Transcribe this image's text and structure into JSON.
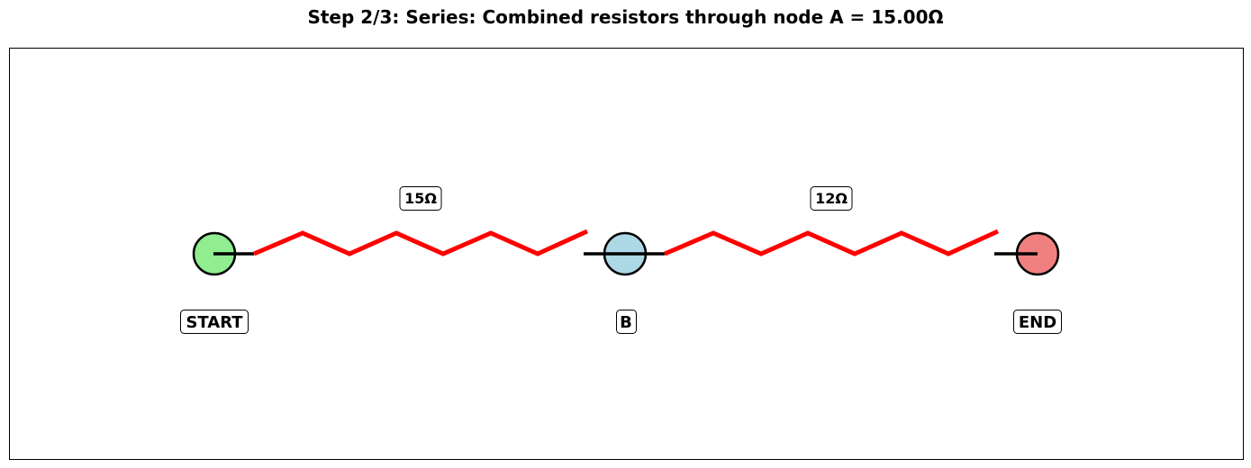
{
  "title": "Step 2/3: Series: Combined resistors through node A = 15.00Ω",
  "colors": {
    "resistor": "#ff0000",
    "wire": "#000000",
    "node_start": "#90ee90",
    "node_mid": "#add8e6",
    "node_end": "#f08080",
    "label_box_fill": "#ffffff",
    "label_box_stroke": "#000000"
  },
  "nodes": [
    {
      "id": "start",
      "label": "START"
    },
    {
      "id": "b",
      "label": "B"
    },
    {
      "id": "end",
      "label": "END"
    }
  ],
  "resistors": [
    {
      "from": "START",
      "to": "B",
      "label": "15Ω"
    },
    {
      "from": "B",
      "to": "END",
      "label": "12Ω"
    }
  ]
}
